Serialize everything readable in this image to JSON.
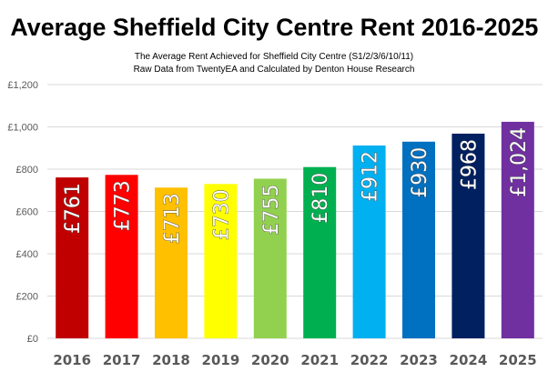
{
  "chart_data": {
    "type": "bar",
    "title": "Average Sheffield City Centre Rent 2016-2025",
    "subtitle": [
      "The Average Rent Achieved for Sheffield City Centre (S1/2/3/6/10/11)",
      "Raw Data from TwentyEA and Calculated by Denton House Research"
    ],
    "categories": [
      "2016",
      "2017",
      "2018",
      "2019",
      "2020",
      "2021",
      "2022",
      "2023",
      "2024",
      "2025"
    ],
    "values": [
      761,
      773,
      713,
      730,
      755,
      810,
      912,
      930,
      968,
      1024
    ],
    "data_labels": [
      "£761",
      "£773",
      "£713",
      "£730",
      "£755",
      "£810",
      "£912",
      "£930",
      "£968",
      "£1,024"
    ],
    "colors": [
      "#C00000",
      "#FF0000",
      "#FFC000",
      "#FFFF00",
      "#92D050",
      "#00B050",
      "#00B0F0",
      "#0070C0",
      "#002060",
      "#7030A0"
    ],
    "ylim": [
      0,
      1200
    ],
    "yticks": [
      0,
      200,
      400,
      600,
      800,
      1000,
      1200
    ],
    "ytick_labels": [
      "£0",
      "£200",
      "£400",
      "£600",
      "£800",
      "£1,000",
      "£1,200"
    ],
    "xlabel": "",
    "ylabel": "",
    "grid": true,
    "legend": "none"
  }
}
